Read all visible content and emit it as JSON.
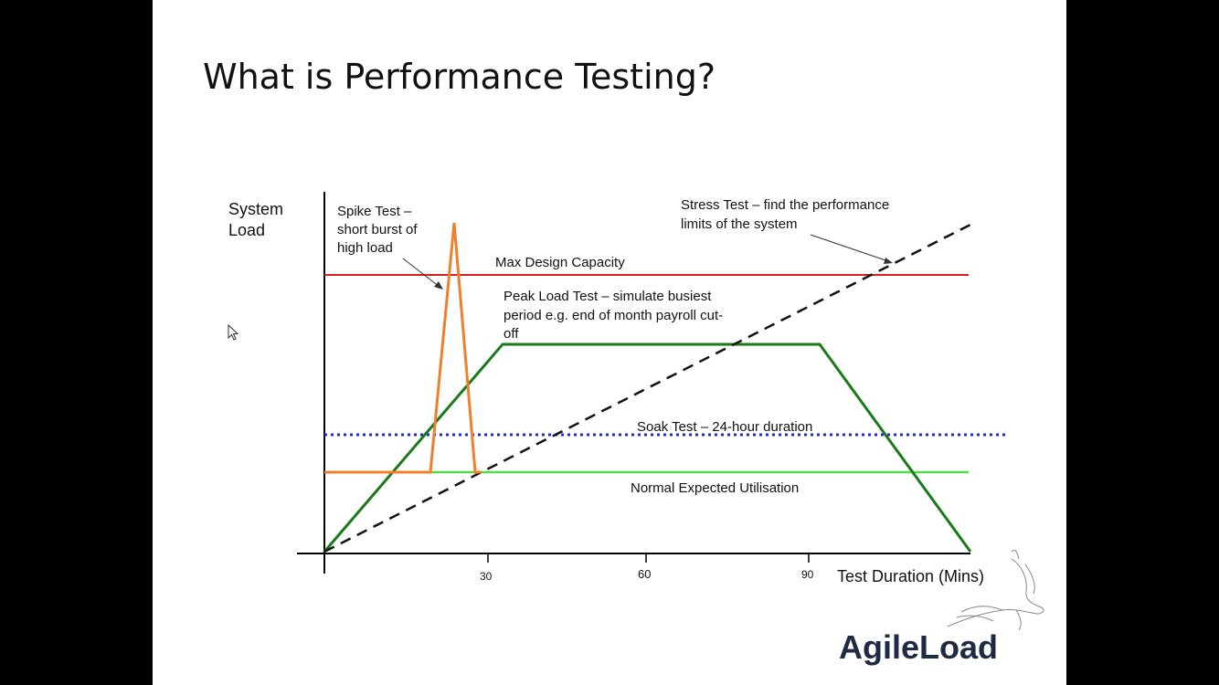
{
  "slide": {
    "title": "What is Performance Testing?"
  },
  "diagram": {
    "y_axis_label": [
      "System",
      "Load"
    ],
    "x_axis_label": "Test Duration (Mins)",
    "x_ticks": [
      "30",
      "60",
      "90"
    ],
    "annotations": {
      "spike": [
        "Spike Test –",
        "short burst of",
        "high load"
      ],
      "stress": [
        "Stress Test – find the performance",
        "limits of the system"
      ],
      "max_capacity": "Max Design Capacity",
      "peak": [
        "Peak Load Test – simulate busiest",
        "period e.g. end of month payroll cut-",
        "off"
      ],
      "soak": "Soak Test – 24-hour duration",
      "normal": "Normal Expected Utilisation"
    },
    "colors": {
      "max_capacity": "#d42020",
      "peak_load": "#1a7a1a",
      "spike": "#f07f2c",
      "soak": "#1f2fcf",
      "normal": "#55dd44",
      "stress": "#111111",
      "axis": "#000000"
    }
  },
  "logo": {
    "text": "AgileLoad",
    "icon": "gazelle-icon"
  }
}
